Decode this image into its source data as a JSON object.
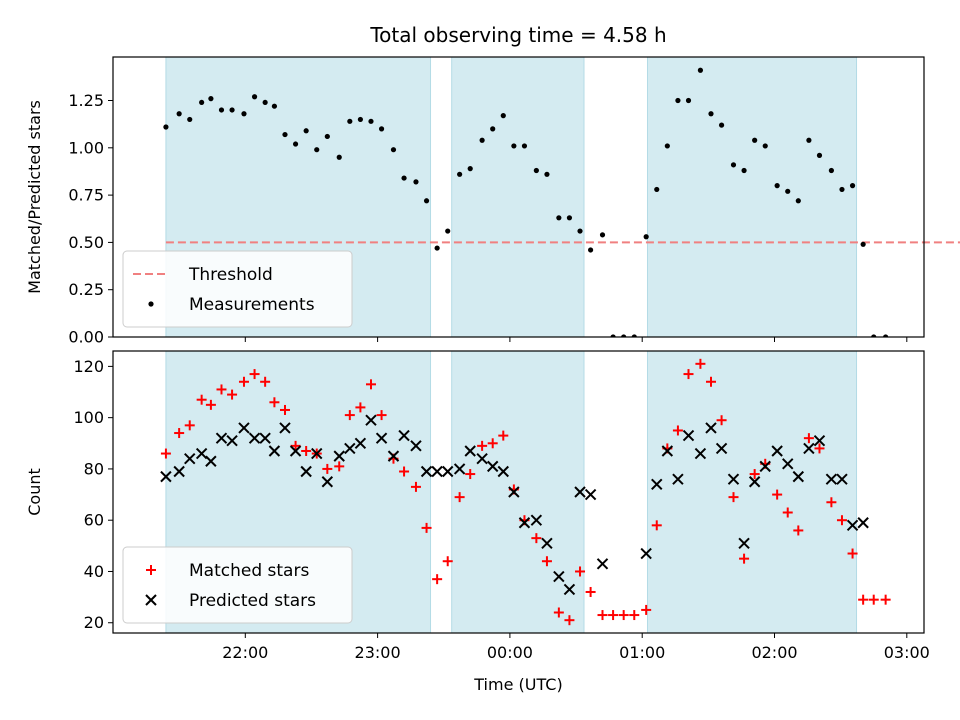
{
  "chart_data": [
    {
      "type": "scatter",
      "title": "Total observing time = 4.58 h",
      "xlabel": "",
      "ylabel": "Matched/Predicted stars",
      "ylim": [
        0,
        1.48
      ],
      "yticks": [
        "0.00",
        "0.25",
        "0.50",
        "0.75",
        "1.00",
        "1.25"
      ],
      "ytick_values": [
        0,
        0.25,
        0.5,
        0.75,
        1.0,
        1.25
      ],
      "shaded_intervals_hours": [
        [
          21.4,
          23.4
        ],
        [
          23.56,
          24.56
        ],
        [
          25.04,
          26.62
        ]
      ],
      "threshold": {
        "name": "Threshold",
        "value": 0.5,
        "x_range": [
          21.4,
          28.0
        ],
        "color": "#f08080"
      },
      "legend_position": "lower-left",
      "series": [
        {
          "name": "Measurements",
          "color": "#000000",
          "x": [
            21.4,
            21.5,
            21.58,
            21.67,
            21.74,
            21.82,
            21.9,
            21.99,
            22.07,
            22.15,
            22.22,
            22.3,
            22.38,
            22.46,
            22.54,
            22.62,
            22.71,
            22.79,
            22.87,
            22.95,
            23.03,
            23.12,
            23.2,
            23.29,
            23.37,
            23.45,
            23.53,
            23.62,
            23.7,
            23.79,
            23.87,
            23.95,
            24.03,
            24.11,
            24.2,
            24.28,
            24.37,
            24.45,
            24.53,
            24.61,
            24.7,
            24.78,
            24.86,
            24.94,
            25.03,
            25.11,
            25.19,
            25.27,
            25.35,
            25.44,
            25.52,
            25.6,
            25.69,
            25.77,
            25.85,
            25.93,
            26.02,
            26.1,
            26.18,
            26.26,
            26.34,
            26.43,
            26.51,
            26.59,
            26.67,
            26.75,
            26.84
          ],
          "y": [
            1.11,
            1.18,
            1.15,
            1.24,
            1.26,
            1.2,
            1.2,
            1.18,
            1.27,
            1.24,
            1.22,
            1.07,
            1.02,
            1.09,
            0.99,
            1.06,
            0.95,
            1.14,
            1.15,
            1.14,
            1.1,
            0.99,
            0.84,
            0.82,
            0.72,
            0.47,
            0.56,
            0.86,
            0.89,
            1.04,
            1.1,
            1.17,
            1.01,
            1.01,
            0.88,
            0.86,
            0.63,
            0.63,
            0.56,
            0.46,
            0.54,
            0,
            0,
            0,
            0.53,
            0.78,
            1.01,
            1.25,
            1.25,
            1.41,
            1.18,
            1.12,
            0.91,
            0.88,
            1.04,
            1.01,
            0.8,
            0.77,
            0.72,
            1.04,
            0.96,
            0.88,
            0.78,
            0.8,
            0.49,
            0,
            0
          ]
        }
      ]
    },
    {
      "type": "scatter",
      "title": "",
      "xlabel": "Time (UTC)",
      "ylabel": "Count",
      "ylim": [
        16,
        126
      ],
      "yticks": [
        "20",
        "40",
        "60",
        "80",
        "100",
        "120"
      ],
      "ytick_values": [
        20,
        40,
        60,
        80,
        100,
        120
      ],
      "xlim_hours": [
        21.0,
        27.13
      ],
      "xticks": [
        "22:00",
        "23:00",
        "00:00",
        "01:00",
        "02:00",
        "03:00"
      ],
      "xtick_hours": [
        22,
        23,
        24,
        25,
        26,
        27
      ],
      "shaded_intervals_hours": [
        [
          21.4,
          23.4
        ],
        [
          23.56,
          24.56
        ],
        [
          25.04,
          26.62
        ]
      ],
      "legend_position": "lower-left",
      "series": [
        {
          "name": "Matched stars",
          "marker": "plus",
          "color": "#ff0000",
          "x": [
            21.4,
            21.5,
            21.58,
            21.67,
            21.74,
            21.82,
            21.9,
            21.99,
            22.07,
            22.15,
            22.22,
            22.3,
            22.38,
            22.46,
            22.54,
            22.62,
            22.71,
            22.79,
            22.87,
            22.95,
            23.03,
            23.12,
            23.2,
            23.29,
            23.37,
            23.45,
            23.53,
            23.62,
            23.7,
            23.79,
            23.87,
            23.95,
            24.03,
            24.11,
            24.2,
            24.28,
            24.37,
            24.45,
            24.53,
            24.61,
            24.7,
            24.78,
            24.86,
            24.94,
            25.03,
            25.11,
            25.19,
            25.27,
            25.35,
            25.44,
            25.52,
            25.6,
            25.69,
            25.77,
            25.85,
            25.93,
            26.02,
            26.1,
            26.18,
            26.26,
            26.34,
            26.43,
            26.51,
            26.59,
            26.67,
            26.75,
            26.84
          ],
          "y": [
            86,
            94,
            97,
            107,
            105,
            111,
            109,
            114,
            117,
            114,
            106,
            103,
            89,
            87,
            86,
            80,
            81,
            101,
            104,
            113,
            101,
            84,
            79,
            73,
            57,
            37,
            44,
            69,
            78,
            89,
            90,
            93,
            72,
            60,
            53,
            44,
            24,
            21,
            40,
            32,
            23,
            23,
            23,
            23,
            25,
            58,
            88,
            95,
            117,
            121,
            114,
            99,
            69,
            45,
            78,
            82,
            70,
            63,
            56,
            92,
            88,
            67,
            60,
            47,
            29,
            29,
            29
          ]
        },
        {
          "name": "Predicted stars",
          "marker": "x",
          "color": "#000000",
          "x": [
            21.4,
            21.5,
            21.58,
            21.67,
            21.74,
            21.82,
            21.9,
            21.99,
            22.07,
            22.15,
            22.22,
            22.3,
            22.38,
            22.46,
            22.54,
            22.62,
            22.71,
            22.79,
            22.87,
            22.95,
            23.03,
            23.12,
            23.2,
            23.29,
            23.37,
            23.45,
            23.53,
            23.62,
            23.7,
            23.79,
            23.87,
            23.95,
            24.03,
            24.11,
            24.2,
            24.28,
            24.37,
            24.45,
            24.53,
            24.61,
            24.7,
            25.03,
            25.11,
            25.19,
            25.27,
            25.35,
            25.44,
            25.52,
            25.6,
            25.69,
            25.77,
            25.85,
            25.93,
            26.02,
            26.1,
            26.18,
            26.26,
            26.34,
            26.43,
            26.51,
            26.59,
            26.67
          ],
          "y": [
            77,
            79,
            84,
            86,
            83,
            92,
            91,
            96,
            92,
            92,
            87,
            96,
            87,
            79,
            86,
            75,
            85,
            88,
            90,
            99,
            92,
            85,
            93,
            89,
            79,
            79,
            79,
            80,
            87,
            84,
            81,
            79,
            71,
            59,
            60,
            51,
            38,
            33,
            71,
            70,
            43,
            47,
            74,
            87,
            76,
            93,
            86,
            96,
            88,
            76,
            51,
            75,
            81,
            87,
            82,
            77,
            88,
            91,
            76,
            76,
            58,
            59
          ]
        }
      ]
    }
  ]
}
